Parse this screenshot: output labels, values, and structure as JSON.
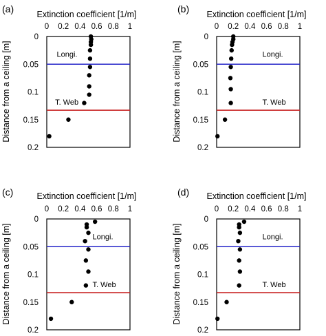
{
  "chart_data": [
    {
      "type": "scatter",
      "panel": "(a)",
      "xlabel": "Extinction coefficient [1/m]",
      "ylabel": "Distance from a ceiling [m]",
      "xlim": [
        0,
        1
      ],
      "ylim": [
        0.2,
        0
      ],
      "x_axis_position": "top",
      "y_axis_inverted": true,
      "x_ticks": [
        "0",
        "0.2",
        "0.4",
        "0.6",
        "0.8",
        "1"
      ],
      "y_ticks": [
        "0",
        "0.05",
        "0.1",
        "0.15",
        "0.2"
      ],
      "points": [
        {
          "x": 0.53,
          "y": 0.0
        },
        {
          "x": 0.535,
          "y": 0.005
        },
        {
          "x": 0.53,
          "y": 0.01
        },
        {
          "x": 0.53,
          "y": 0.015
        },
        {
          "x": 0.52,
          "y": 0.025
        },
        {
          "x": 0.52,
          "y": 0.04
        },
        {
          "x": 0.52,
          "y": 0.055
        },
        {
          "x": 0.51,
          "y": 0.07
        },
        {
          "x": 0.51,
          "y": 0.09
        },
        {
          "x": 0.51,
          "y": 0.105
        },
        {
          "x": 0.45,
          "y": 0.12
        },
        {
          "x": 0.26,
          "y": 0.15
        },
        {
          "x": 0.03,
          "y": 0.18
        }
      ],
      "reference_lines": [
        {
          "label": "Longi.",
          "y": 0.05,
          "color": "#2323c8"
        },
        {
          "label": "T. Web",
          "y": 0.133,
          "color": "#c82323"
        }
      ]
    },
    {
      "type": "scatter",
      "panel": "(b)",
      "xlabel": "Extinction coefficient [1/m]",
      "ylabel": "Distance from a ceiling [m]",
      "xlim": [
        0,
        1
      ],
      "ylim": [
        0.2,
        0
      ],
      "x_axis_position": "top",
      "y_axis_inverted": true,
      "x_ticks": [
        "0",
        "0.2",
        "0.4",
        "0.6",
        "0.8",
        "1"
      ],
      "y_ticks": [
        "0",
        "0.05",
        "0.1",
        "0.15",
        "0.2"
      ],
      "points": [
        {
          "x": 0.2,
          "y": 0.0
        },
        {
          "x": 0.2,
          "y": 0.005
        },
        {
          "x": 0.19,
          "y": 0.01
        },
        {
          "x": 0.185,
          "y": 0.015
        },
        {
          "x": 0.18,
          "y": 0.025
        },
        {
          "x": 0.175,
          "y": 0.04
        },
        {
          "x": 0.17,
          "y": 0.055
        },
        {
          "x": 0.165,
          "y": 0.075
        },
        {
          "x": 0.17,
          "y": 0.095
        },
        {
          "x": 0.17,
          "y": 0.12
        },
        {
          "x": 0.1,
          "y": 0.15
        },
        {
          "x": 0.01,
          "y": 0.18
        }
      ],
      "reference_lines": [
        {
          "label": "Longi.",
          "y": 0.05,
          "color": "#2323c8"
        },
        {
          "label": "T. Web",
          "y": 0.133,
          "color": "#c82323"
        }
      ]
    },
    {
      "type": "scatter",
      "panel": "(c)",
      "xlabel": "Extinction coefficient [1/m]",
      "ylabel": "Distance from a ceiling [m]",
      "xlim": [
        0,
        1
      ],
      "ylim": [
        0.2,
        0
      ],
      "x_axis_position": "top",
      "y_axis_inverted": true,
      "x_ticks": [
        "0",
        "0.2",
        "0.4",
        "0.6",
        "0.8",
        "1"
      ],
      "y_ticks": [
        "0",
        "0.05",
        "0.1",
        "0.15",
        "0.2"
      ],
      "points": [
        {
          "x": 0.58,
          "y": 0.005
        },
        {
          "x": 0.48,
          "y": 0.01
        },
        {
          "x": 0.48,
          "y": 0.015
        },
        {
          "x": 0.5,
          "y": 0.025
        },
        {
          "x": 0.46,
          "y": 0.04
        },
        {
          "x": 0.5,
          "y": 0.055
        },
        {
          "x": 0.47,
          "y": 0.075
        },
        {
          "x": 0.5,
          "y": 0.095
        },
        {
          "x": 0.47,
          "y": 0.12
        },
        {
          "x": 0.3,
          "y": 0.15
        },
        {
          "x": 0.05,
          "y": 0.18
        }
      ],
      "reference_lines": [
        {
          "label": "Longi.",
          "y": 0.05,
          "color": "#2323c8"
        },
        {
          "label": "T. Web",
          "y": 0.133,
          "color": "#c82323"
        }
      ]
    },
    {
      "type": "scatter",
      "panel": "(d)",
      "xlabel": "Extinction coefficient [1/m]",
      "ylabel": "Distance from a ceiling [m]",
      "xlim": [
        0,
        1
      ],
      "ylim": [
        0.2,
        0
      ],
      "x_axis_position": "top",
      "y_axis_inverted": true,
      "x_ticks": [
        "0",
        "0.2",
        "0.4",
        "0.6",
        "0.8",
        "1"
      ],
      "y_ticks": [
        "0",
        "0.05",
        "0.1",
        "0.15",
        "0.2"
      ],
      "points": [
        {
          "x": 0.33,
          "y": 0.005
        },
        {
          "x": 0.27,
          "y": 0.01
        },
        {
          "x": 0.27,
          "y": 0.015
        },
        {
          "x": 0.28,
          "y": 0.025
        },
        {
          "x": 0.26,
          "y": 0.04
        },
        {
          "x": 0.28,
          "y": 0.055
        },
        {
          "x": 0.27,
          "y": 0.075
        },
        {
          "x": 0.28,
          "y": 0.095
        },
        {
          "x": 0.27,
          "y": 0.12
        },
        {
          "x": 0.12,
          "y": 0.15
        },
        {
          "x": 0.01,
          "y": 0.18
        }
      ],
      "reference_lines": [
        {
          "label": "Longi.",
          "y": 0.05,
          "color": "#2323c8"
        },
        {
          "label": "T. Web",
          "y": 0.133,
          "color": "#c82323"
        }
      ]
    }
  ]
}
